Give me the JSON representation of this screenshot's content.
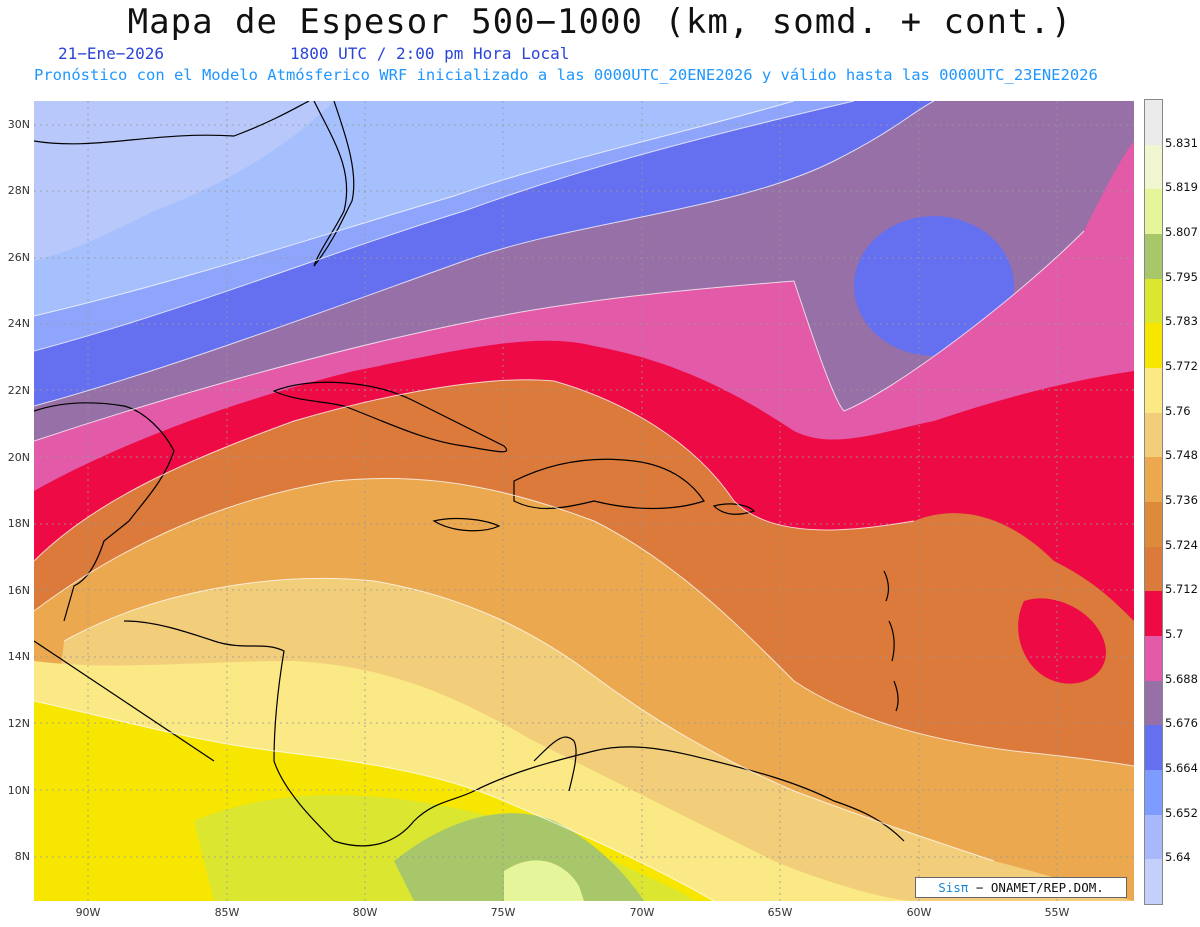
{
  "title": "Mapa de Espesor 500−1000 (km, somd. + cont.)",
  "date": "21−Ene−2026",
  "time": "1800 UTC / 2:00 pm Hora Local",
  "forecast_note": "Pronóstico con el Modelo Atmósferico WRF inicializado a las 0000UTC_20ENE2026 y válido hasta las  0000UTC_23ENE2026",
  "lat_labels": [
    "30N",
    "28N",
    "26N",
    "24N",
    "22N",
    "20N",
    "18N",
    "16N",
    "14N",
    "12N",
    "10N",
    "8N"
  ],
  "lon_labels": [
    "90W",
    "85W",
    "80W",
    "75W",
    "70W",
    "65W",
    "60W",
    "55W"
  ],
  "colorbar": {
    "labels": [
      "5.831",
      "5.819",
      "5.807",
      "5.795",
      "5.783",
      "5.772",
      "5.76",
      "5.748",
      "5.736",
      "5.724",
      "5.712",
      "5.7",
      "5.688",
      "5.676",
      "5.664",
      "5.652",
      "5.64"
    ],
    "colors": [
      "#ebebeb",
      "#f2f6d0",
      "#e4f59a",
      "#a8c76a",
      "#dbe630",
      "#f7e600",
      "#fbe985",
      "#f2cd7a",
      "#eba84e",
      "#de8a3b",
      "#db7a3a",
      "#ed0a45",
      "#e25aa8",
      "#9670a6",
      "#6470f0",
      "#7e9bff",
      "#a9b8fb",
      "#c4cffb"
    ]
  },
  "credit": {
    "brand": "Sisπ",
    "text": "− ONAMET/REP.DOM."
  }
}
